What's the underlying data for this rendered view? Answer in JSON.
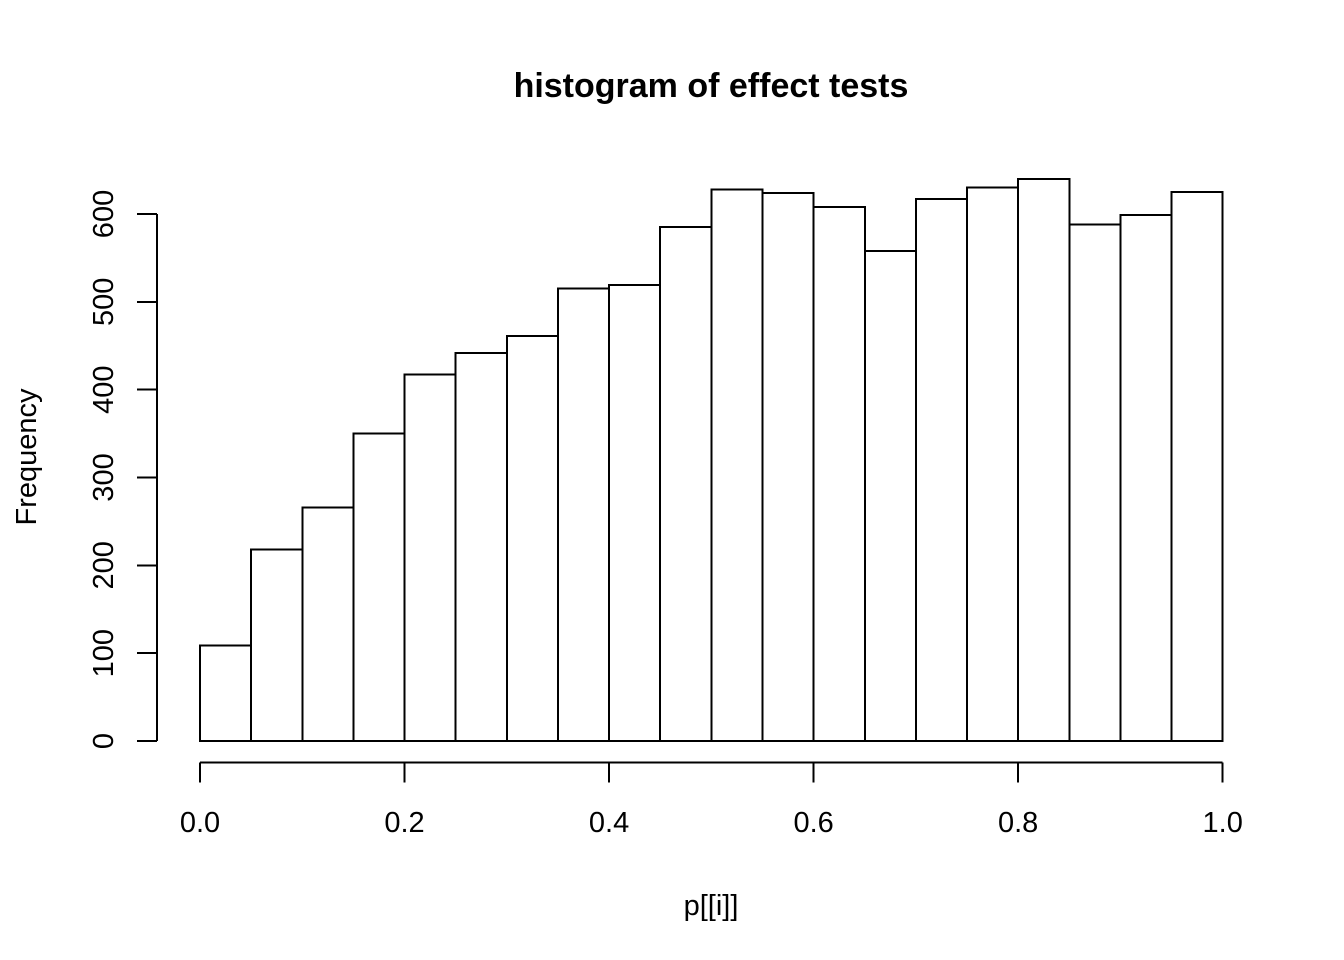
{
  "window": {
    "background_color": "#ffffff"
  },
  "chart_data": {
    "type": "bar",
    "subtype": "histogram",
    "title": "histogram of effect tests",
    "xlabel": "p[[i]]",
    "ylabel": "Frequency",
    "bin_edges": [
      0,
      0.05,
      0.1,
      0.15,
      0.2,
      0.25,
      0.3,
      0.35,
      0.4,
      0.45,
      0.5,
      0.55,
      0.6,
      0.65,
      0.7,
      0.75,
      0.8,
      0.85,
      0.9,
      0.95,
      1.0
    ],
    "values": [
      109,
      218,
      266,
      350,
      417,
      442,
      461,
      515,
      519,
      585,
      628,
      624,
      608,
      558,
      617,
      630,
      640,
      588,
      599,
      625
    ],
    "x_ticks": [
      0.0,
      0.2,
      0.4,
      0.6,
      0.8,
      1.0
    ],
    "x_tick_labels": [
      "0.0",
      "0.2",
      "0.4",
      "0.6",
      "0.8",
      "1.0"
    ],
    "y_ticks": [
      0,
      100,
      200,
      300,
      400,
      500,
      600
    ],
    "y_tick_labels": [
      "0",
      "100",
      "200",
      "300",
      "400",
      "500",
      "600"
    ],
    "xlim": [
      0,
      1
    ],
    "ylim": [
      0,
      600
    ],
    "grid": false,
    "legend": "none",
    "bar_fill": "#ffffff",
    "bar_stroke": "#000000",
    "axis_color": "#000000",
    "text_color": "#000000"
  }
}
